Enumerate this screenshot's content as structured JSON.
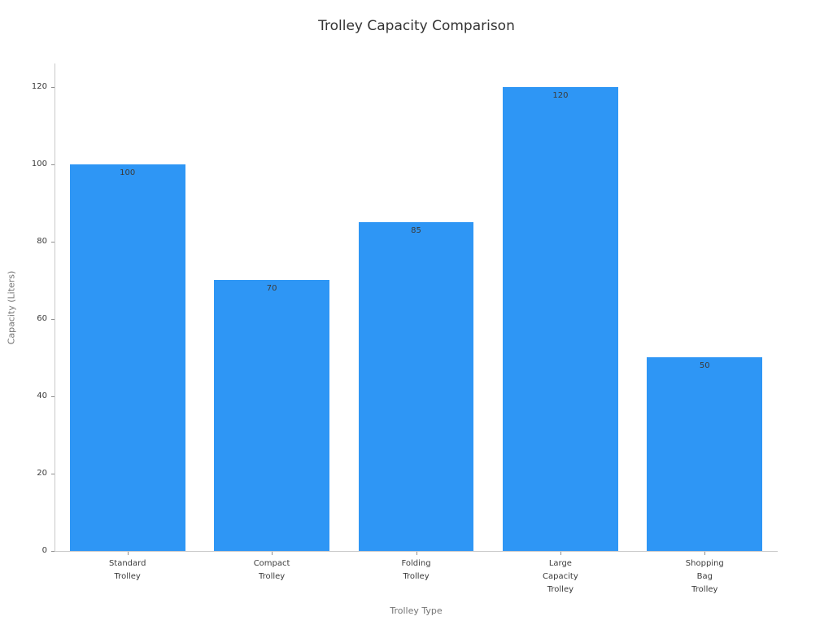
{
  "chart_data": {
    "type": "bar",
    "title": "Trolley Capacity Comparison",
    "xlabel": "Trolley Type",
    "ylabel": "Capacity (Liters)",
    "categories": [
      "Standard Trolley",
      "Compact Trolley",
      "Folding Trolley",
      "Large Capacity Trolley",
      "Shopping Bag Trolley"
    ],
    "values": [
      100,
      70,
      85,
      120,
      50
    ],
    "tick_labels": [
      [
        "Standard",
        "Trolley"
      ],
      [
        "Compact",
        "Trolley"
      ],
      [
        "Folding",
        "Trolley"
      ],
      [
        "Large",
        "Capacity",
        "Trolley"
      ],
      [
        "Shopping",
        "Bag",
        "Trolley"
      ]
    ],
    "yticks": [
      0,
      20,
      40,
      60,
      80,
      100,
      120
    ],
    "ylim": [
      0,
      126
    ],
    "grid": false,
    "legend_position": "none",
    "bar_color": "#2E96F5",
    "value_label_color": "#3b3b3b",
    "axis_color": "#c9c9c9",
    "text_color": "#3b3b3b",
    "muted_text_color": "#757575"
  }
}
